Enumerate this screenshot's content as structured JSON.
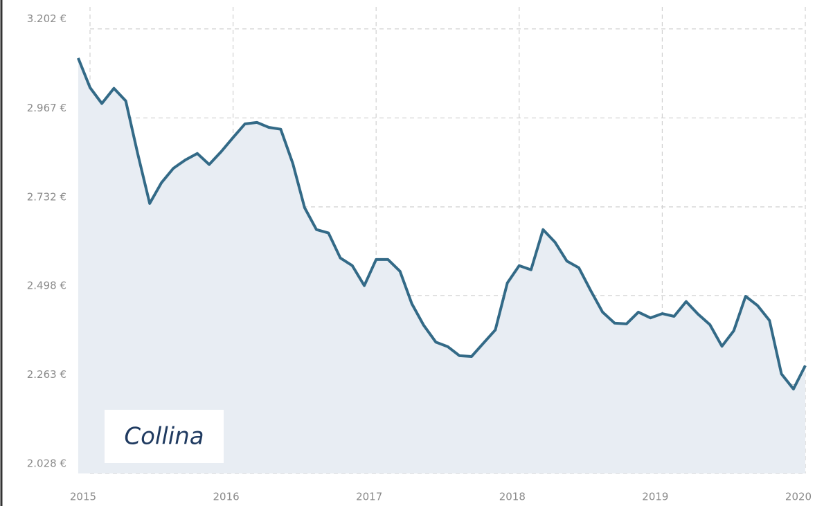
{
  "chart_data": {
    "type": "line",
    "annotation": "Collina",
    "x": [
      2014.917,
      2015,
      2015.083,
      2015.167,
      2015.25,
      2015.333,
      2015.417,
      2015.5,
      2015.583,
      2015.667,
      2015.75,
      2015.833,
      2015.917,
      2016,
      2016.083,
      2016.167,
      2016.25,
      2016.333,
      2016.417,
      2016.5,
      2016.583,
      2016.667,
      2016.75,
      2016.833,
      2016.917,
      2017,
      2017.083,
      2017.167,
      2017.25,
      2017.333,
      2017.417,
      2017.5,
      2017.583,
      2017.667,
      2017.75,
      2017.833,
      2017.917,
      2018,
      2018.083,
      2018.167,
      2018.25,
      2018.333,
      2018.417,
      2018.5,
      2018.583,
      2018.667,
      2018.75,
      2018.833,
      2018.917,
      2019,
      2019.083,
      2019.167,
      2019.25,
      2019.333,
      2019.417,
      2019.5,
      2019.583,
      2019.667,
      2019.75,
      2019.833,
      2019.917,
      2020
    ],
    "series": [
      {
        "color": "#336a87",
        "fill": "#e8edf3",
        "values": [
          3125,
          3047,
          3005,
          3045,
          3012,
          2873,
          2741,
          2796,
          2834,
          2856,
          2873,
          2844,
          2878,
          2915,
          2951,
          2955,
          2942,
          2937,
          2847,
          2730,
          2672,
          2663,
          2597,
          2577,
          2524,
          2593,
          2593,
          2562,
          2476,
          2419,
          2375,
          2363,
          2339,
          2337,
          2372,
          2407,
          2531,
          2577,
          2566,
          2672,
          2639,
          2589,
          2571,
          2511,
          2454,
          2425,
          2423,
          2454,
          2439,
          2450,
          2443,
          2482,
          2449,
          2421,
          2364,
          2405,
          2496,
          2471,
          2432,
          2291,
          2251,
          2313
        ]
      }
    ],
    "xlim": [
      2014.879,
      2020
    ],
    "xticks": [
      2015,
      2016,
      2017,
      2018,
      2019,
      2020
    ],
    "ylim": [
      2028,
      3260
    ],
    "yticks": [
      {
        "value": 2028,
        "label": "2.028 €"
      },
      {
        "value": 2263,
        "label": "2.263 €"
      },
      {
        "value": 2498,
        "label": "2.498 €"
      },
      {
        "value": 2732,
        "label": "2.732 €"
      },
      {
        "value": 2967,
        "label": "2.967 €"
      },
      {
        "value": 3202,
        "label": "3.202 €"
      }
    ],
    "grid": true
  }
}
